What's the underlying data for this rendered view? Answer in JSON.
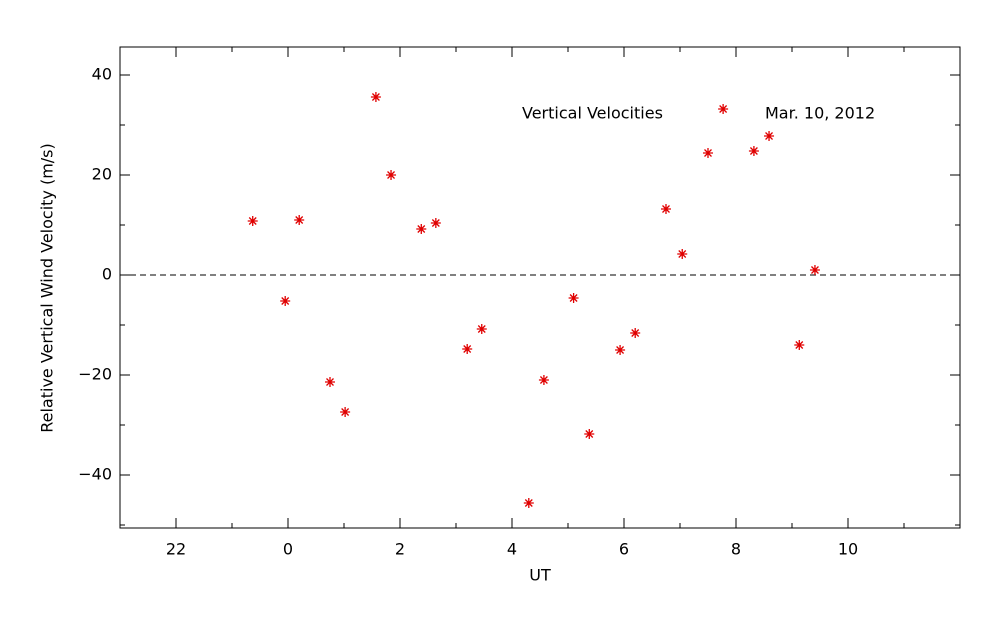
{
  "chart_data": {
    "type": "scatter",
    "x_label": "UT",
    "y_label": "Relative Vertical Wind Velocity (m/s)",
    "annotations": [
      "Vertical Velocities",
      "Mar. 10, 2012"
    ],
    "x": [
      -0.63,
      -0.05,
      0.2,
      0.75,
      1.02,
      1.57,
      1.84,
      2.38,
      2.64,
      3.2,
      3.46,
      4.3,
      4.57,
      5.1,
      5.38,
      5.93,
      6.2,
      6.75,
      7.04,
      7.5,
      7.77,
      8.32,
      8.59,
      9.13,
      9.41
    ],
    "series": [
      {
        "color": "#e00000",
        "values": [
          10.8,
          -5.2,
          11,
          -21.4,
          -27.4,
          35.6,
          20,
          9.2,
          10.4,
          -14.8,
          -10.8,
          -45.6,
          -21,
          -4.6,
          -31.8,
          -15,
          -11.6,
          13.2,
          4.2,
          24.4,
          33.2,
          24.8,
          27.8,
          -14,
          1
        ]
      }
    ],
    "reference_line": 0,
    "xlim": [
      -3,
      12
    ],
    "xticks": [
      {
        "value": -2,
        "label": "22"
      },
      0,
      2,
      4,
      6,
      8,
      10
    ],
    "ylim": [
      -50.6,
      45.6
    ],
    "yticks": [
      {
        "value": -40,
        "label": "−40"
      },
      {
        "value": -20,
        "label": "−20"
      },
      0,
      20,
      40
    ]
  }
}
